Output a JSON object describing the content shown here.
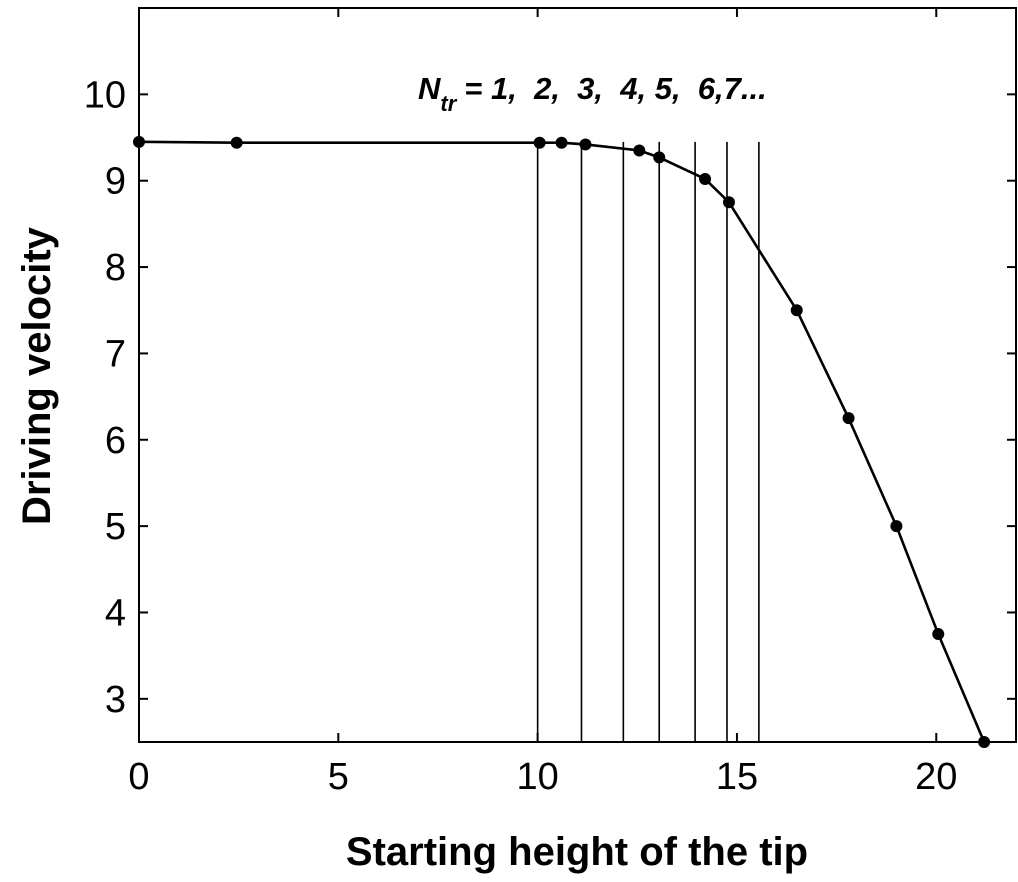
{
  "chart_data": {
    "type": "line",
    "title": "",
    "xlabel": "Starting height of the tip",
    "ylabel": "Driving velocity",
    "xlim": [
      0,
      22
    ],
    "ylim": [
      2.5,
      11
    ],
    "xticks": [
      0,
      5,
      10,
      15,
      20
    ],
    "yticks": [
      3,
      4,
      5,
      6,
      7,
      8,
      9,
      10
    ],
    "grid": false,
    "series": [
      {
        "x": [
          0,
          2.45,
          10.05,
          10.6,
          11.2,
          12.55,
          13.05,
          14.2,
          14.8,
          16.5,
          17.8,
          19.0,
          20.05,
          21.2
        ],
        "y": [
          9.45,
          9.44,
          9.44,
          9.44,
          9.42,
          9.35,
          9.27,
          9.02,
          8.75,
          7.5,
          6.25,
          5.0,
          3.75,
          2.5
        ]
      }
    ],
    "vertical_lines": [
      10.0,
      11.1,
      12.15,
      13.05,
      13.95,
      14.75,
      15.55
    ],
    "annotation": {
      "symbol": "N",
      "subscript": "tr",
      "text": "= 1,  2,  3,  4, 5,  6,7..."
    }
  }
}
